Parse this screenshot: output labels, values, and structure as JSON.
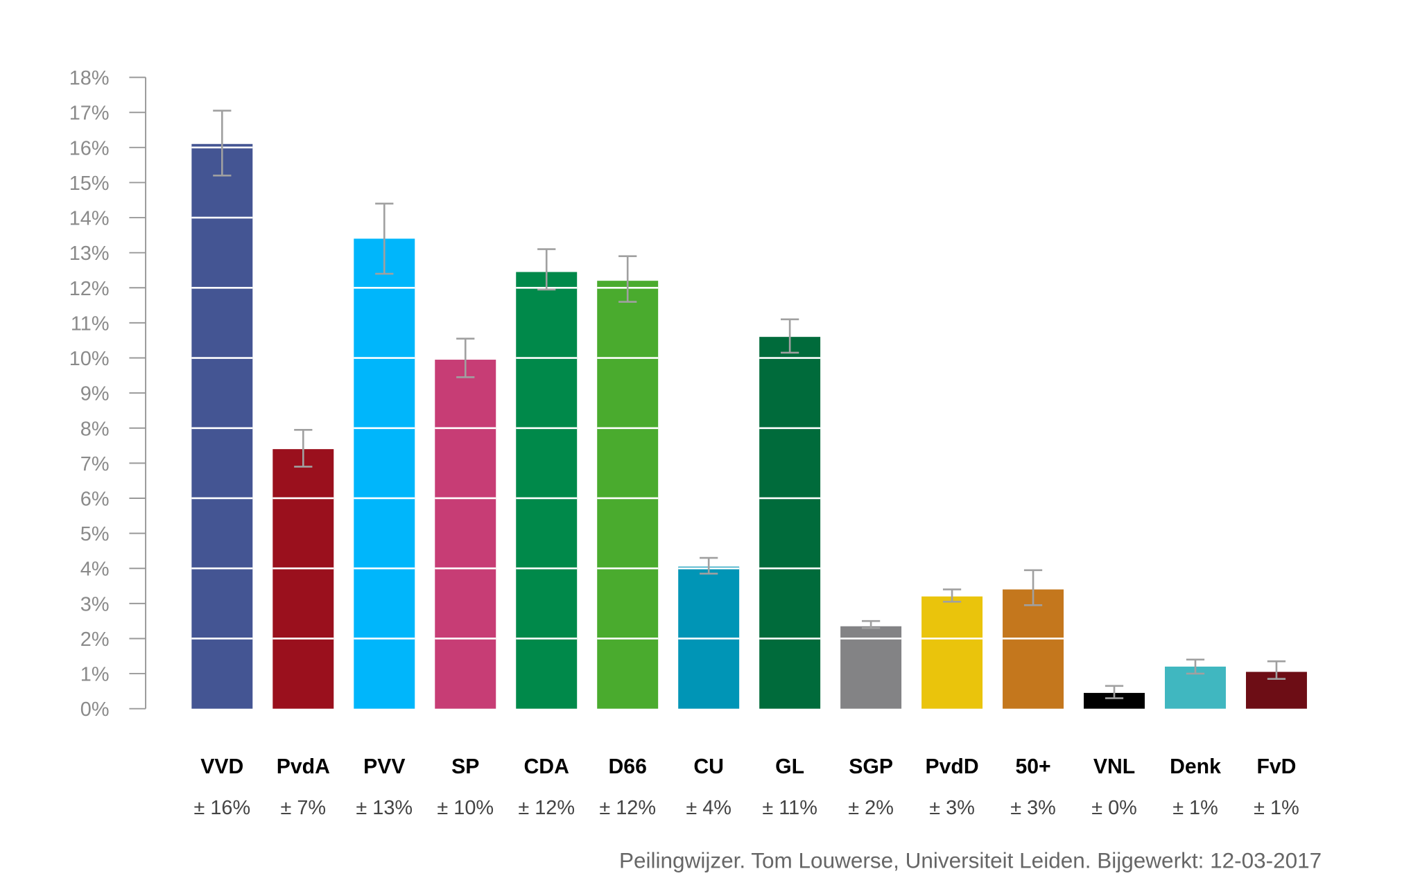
{
  "chart_data": {
    "type": "bar",
    "title": "",
    "xlabel": "",
    "ylabel": "",
    "ylim": [
      0,
      18
    ],
    "yticks": [
      "0%",
      "1%",
      "2%",
      "3%",
      "4%",
      "5%",
      "6%",
      "7%",
      "8%",
      "9%",
      "10%",
      "11%",
      "12%",
      "13%",
      "14%",
      "15%",
      "16%",
      "17%",
      "18%"
    ],
    "grid": "white lines inside bars every 2%",
    "categories": [
      "VVD",
      "PvdA",
      "PVV",
      "SP",
      "CDA",
      "D66",
      "CU",
      "GL",
      "SGP",
      "PvdD",
      "50+",
      "VNL",
      "Denk",
      "FvD"
    ],
    "values": [
      16.1,
      7.4,
      13.4,
      9.95,
      12.45,
      12.2,
      4.05,
      10.6,
      2.35,
      3.2,
      3.4,
      0.45,
      1.2,
      1.05
    ],
    "error_low": [
      15.2,
      6.9,
      12.4,
      9.45,
      11.95,
      11.6,
      3.85,
      10.15,
      2.3,
      3.05,
      2.95,
      0.3,
      1.0,
      0.85
    ],
    "error_high": [
      17.05,
      7.95,
      14.4,
      10.55,
      13.1,
      12.9,
      4.3,
      11.1,
      2.5,
      3.4,
      3.95,
      0.65,
      1.4,
      1.35
    ],
    "sublabels": [
      "± 16%",
      "± 7%",
      "± 13%",
      "± 10%",
      "± 12%",
      "± 12%",
      "± 4%",
      "± 11%",
      "± 2%",
      "± 3%",
      "± 3%",
      "± 0%",
      "± 1%",
      "± 1%"
    ],
    "colors": [
      "#445593",
      "#9a101d",
      "#00b6fb",
      "#c73d75",
      "#00894a",
      "#4aab2e",
      "#0095b6",
      "#006b3b",
      "#838385",
      "#eac40c",
      "#c4771d",
      "#000000",
      "#40b7c0",
      "#6d0d15"
    ],
    "footer": "Peilingwijzer. Tom Louwerse, Universiteit Leiden. Bijgewerkt: 12-03-2017"
  }
}
